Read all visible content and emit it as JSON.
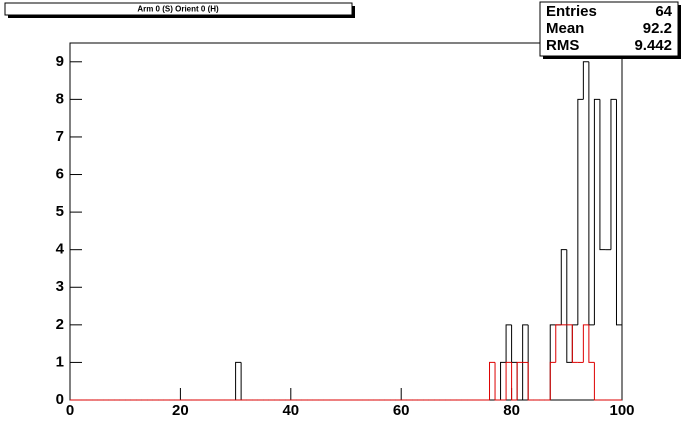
{
  "chart_data": {
    "type": "histogram",
    "title": "Arm 0 (S) Orient 0 (H)",
    "bins": [
      0,
      1,
      2,
      3,
      4,
      5,
      6,
      7,
      8,
      9,
      10,
      11,
      12,
      13,
      14,
      15,
      16,
      17,
      18,
      19,
      20,
      21,
      22,
      23,
      24,
      25,
      26,
      27,
      28,
      29,
      30,
      31,
      32,
      33,
      34,
      35,
      36,
      37,
      38,
      39,
      40,
      41,
      42,
      43,
      44,
      45,
      46,
      47,
      48,
      49,
      50,
      51,
      52,
      53,
      54,
      55,
      56,
      57,
      58,
      59,
      60,
      61,
      62,
      63,
      64,
      65,
      66,
      67,
      68,
      69,
      70,
      71,
      72,
      73,
      74,
      75,
      76,
      77,
      78,
      79,
      80,
      81,
      82,
      83,
      84,
      85,
      86,
      87,
      88,
      89,
      90,
      91,
      92,
      93,
      94,
      95,
      96,
      97,
      98,
      99,
      100
    ],
    "series": [
      {
        "color": "#000000",
        "values": [
          0,
          0,
          0,
          0,
          0,
          0,
          0,
          0,
          0,
          0,
          0,
          0,
          0,
          0,
          0,
          0,
          0,
          0,
          0,
          0,
          0,
          0,
          0,
          0,
          0,
          0,
          0,
          0,
          0,
          0,
          1,
          0,
          0,
          0,
          0,
          0,
          0,
          0,
          0,
          0,
          0,
          0,
          0,
          0,
          0,
          0,
          0,
          0,
          0,
          0,
          0,
          0,
          0,
          0,
          0,
          0,
          0,
          0,
          0,
          0,
          0,
          0,
          0,
          0,
          0,
          0,
          0,
          0,
          0,
          0,
          0,
          0,
          0,
          0,
          0,
          0,
          0,
          0,
          1,
          2,
          1,
          0,
          2,
          0,
          0,
          0,
          0,
          2,
          2,
          4,
          1,
          2,
          8,
          9,
          2,
          8,
          4,
          4,
          8,
          2
        ]
      },
      {
        "color": "#dd0000",
        "values": [
          0,
          0,
          0,
          0,
          0,
          0,
          0,
          0,
          0,
          0,
          0,
          0,
          0,
          0,
          0,
          0,
          0,
          0,
          0,
          0,
          0,
          0,
          0,
          0,
          0,
          0,
          0,
          0,
          0,
          0,
          0,
          0,
          0,
          0,
          0,
          0,
          0,
          0,
          0,
          0,
          0,
          0,
          0,
          0,
          0,
          0,
          0,
          0,
          0,
          0,
          0,
          0,
          0,
          0,
          0,
          0,
          0,
          0,
          0,
          0,
          0,
          0,
          0,
          0,
          0,
          0,
          0,
          0,
          0,
          0,
          0,
          0,
          0,
          0,
          0,
          0,
          1,
          0,
          0,
          1,
          0,
          1,
          1,
          0,
          0,
          0,
          0,
          1,
          2,
          2,
          2,
          1,
          1,
          2,
          1,
          0,
          0,
          0,
          0,
          0
        ]
      }
    ],
    "xlim": [
      0,
      100
    ],
    "xticks": [
      0,
      20,
      40,
      60,
      80,
      100
    ],
    "ylim": [
      0,
      9.5
    ],
    "yticks": [
      0,
      1,
      2,
      3,
      4,
      5,
      6,
      7,
      8,
      9
    ],
    "stats": {
      "labels": [
        "Entries",
        "Mean",
        "RMS"
      ],
      "values": [
        "64",
        "92.2",
        "9.442"
      ]
    }
  }
}
